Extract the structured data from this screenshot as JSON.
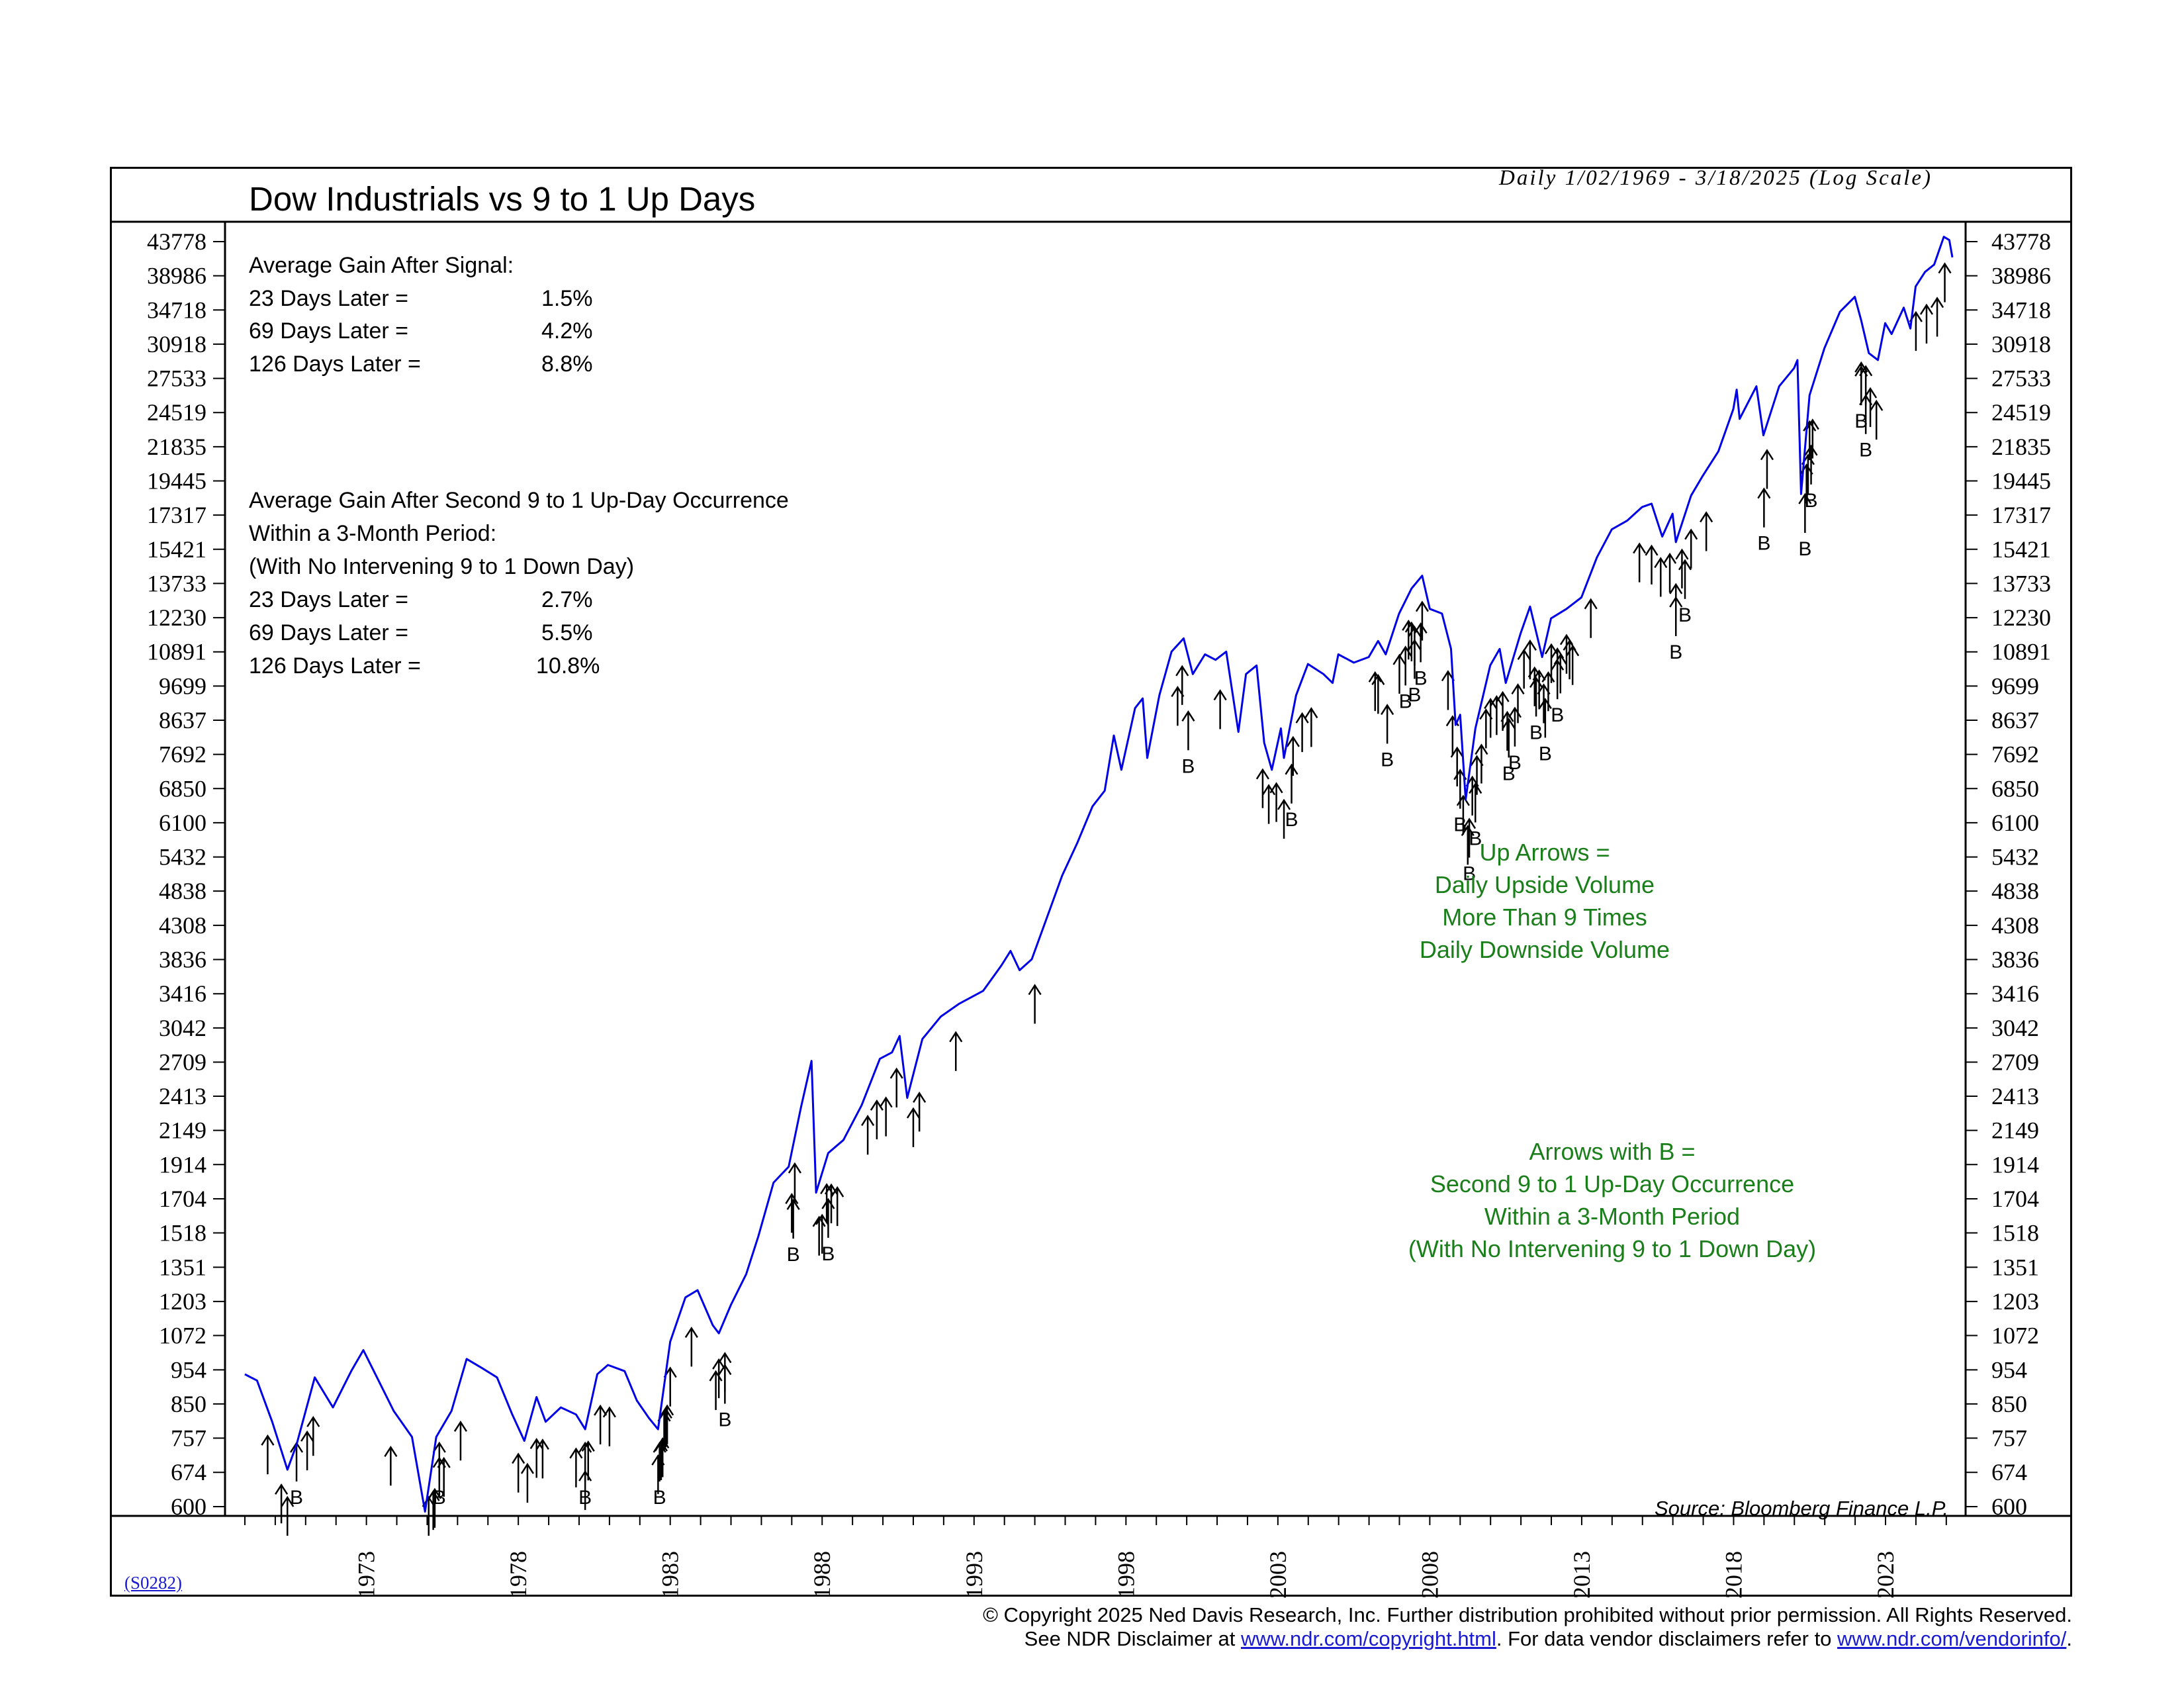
{
  "header": {
    "title": "Dow Industrials vs 9 to 1 Up Days",
    "subtitle": "Daily 1/02/1969 - 3/18/2025 (Log Scale)"
  },
  "annotations": {
    "stats1": [
      "Average Gain After Signal:"
    ],
    "stats1_rows": [
      {
        "label": "23 Days Later =",
        "value": "1.5%"
      },
      {
        "label": "69 Days Later =",
        "value": "4.2%"
      },
      {
        "label": "126 Days Later =",
        "value": "8.8%"
      }
    ],
    "stats2": [
      "Average Gain After Second 9 to 1 Up-Day Occurrence",
      "Within a 3-Month Period:",
      "(With No Intervening 9 to 1 Down Day)"
    ],
    "stats2_rows": [
      {
        "label": "23 Days Later =",
        "value": "2.7%"
      },
      {
        "label": "69 Days Later =",
        "value": "5.5%"
      },
      {
        "label": "126 Days Later =",
        "value": "10.8%"
      }
    ],
    "legend_up": [
      "Up Arrows =",
      "Daily Upside Volume",
      "More Than 9 Times",
      "Daily Downside Volume"
    ],
    "legend_b": [
      "Arrows with B =",
      "Second 9 to 1 Up-Day Occurrence",
      "Within a 3-Month Period",
      "(With No Intervening 9 to 1 Down Day)"
    ],
    "source": "Source: Bloomberg Finance L.P.",
    "b_marker": "B",
    "accent_color": "#1a7f1a",
    "line_color": "#0000e6"
  },
  "code": "(S0282)",
  "footer": {
    "line1": "© Copyright 2025 Ned Davis Research, Inc.  Further distribution prohibited without prior permission.  All Rights Reserved.",
    "line2_pre": "See NDR Disclaimer at ",
    "link1": "www.ndr.com/copyright.html",
    "line2_mid": ". For data vendor disclaimers refer to ",
    "link2": "www.ndr.com/vendorinfo/",
    "line2_post": "."
  },
  "chart_data": {
    "type": "line",
    "scale": "log",
    "title": "Dow Industrials vs 9 to 1 Up Days",
    "subtitle": "Daily 1/02/1969 - 3/18/2025 (Log Scale)",
    "x_ticks": [
      "1973",
      "1978",
      "1983",
      "1988",
      "1993",
      "1998",
      "2003",
      "2008",
      "2013",
      "2018",
      "2023"
    ],
    "x_range": [
      1969.0,
      2025.2
    ],
    "y_ticks": [
      43778,
      38986,
      34718,
      30918,
      27533,
      24519,
      21835,
      19445,
      17317,
      15421,
      13733,
      12230,
      10891,
      9699,
      8637,
      7692,
      6850,
      6100,
      5432,
      4838,
      4308,
      3836,
      3416,
      3042,
      2709,
      2413,
      2149,
      1914,
      1704,
      1518,
      1351,
      1203,
      1072,
      954,
      850,
      757,
      674,
      600
    ],
    "y_range": [
      600,
      43778
    ],
    "series": [
      {
        "name": "Dow Industrials",
        "points": [
          [
            1969.0,
            940
          ],
          [
            1969.4,
            920
          ],
          [
            1969.9,
            800
          ],
          [
            1970.4,
            680
          ],
          [
            1970.7,
            740
          ],
          [
            1971.3,
            930
          ],
          [
            1971.9,
            840
          ],
          [
            1972.5,
            950
          ],
          [
            1972.9,
            1020
          ],
          [
            1973.4,
            920
          ],
          [
            1973.9,
            830
          ],
          [
            1974.5,
            760
          ],
          [
            1974.93,
            590
          ],
          [
            1975.3,
            760
          ],
          [
            1975.8,
            830
          ],
          [
            1976.3,
            990
          ],
          [
            1976.8,
            960
          ],
          [
            1977.3,
            930
          ],
          [
            1977.8,
            820
          ],
          [
            1978.2,
            750
          ],
          [
            1978.6,
            870
          ],
          [
            1978.9,
            800
          ],
          [
            1979.4,
            840
          ],
          [
            1979.9,
            820
          ],
          [
            1980.2,
            780
          ],
          [
            1980.6,
            940
          ],
          [
            1980.95,
            970
          ],
          [
            1981.5,
            950
          ],
          [
            1981.9,
            860
          ],
          [
            1982.3,
            810
          ],
          [
            1982.6,
            780
          ],
          [
            1983.0,
            1050
          ],
          [
            1983.5,
            1220
          ],
          [
            1983.9,
            1250
          ],
          [
            1984.4,
            1110
          ],
          [
            1984.6,
            1080
          ],
          [
            1985.0,
            1190
          ],
          [
            1985.5,
            1320
          ],
          [
            1985.9,
            1500
          ],
          [
            1986.4,
            1800
          ],
          [
            1986.9,
            1900
          ],
          [
            1987.3,
            2320
          ],
          [
            1987.65,
            2720
          ],
          [
            1987.8,
            1740
          ],
          [
            1988.2,
            1990
          ],
          [
            1988.7,
            2080
          ],
          [
            1989.3,
            2340
          ],
          [
            1989.9,
            2740
          ],
          [
            1990.3,
            2800
          ],
          [
            1990.55,
            2960
          ],
          [
            1990.8,
            2400
          ],
          [
            1991.3,
            2930
          ],
          [
            1991.9,
            3160
          ],
          [
            1992.5,
            3300
          ],
          [
            1993.3,
            3450
          ],
          [
            1993.9,
            3760
          ],
          [
            1994.2,
            3950
          ],
          [
            1994.5,
            3700
          ],
          [
            1994.9,
            3840
          ],
          [
            1995.5,
            4550
          ],
          [
            1995.9,
            5100
          ],
          [
            1996.4,
            5700
          ],
          [
            1996.9,
            6450
          ],
          [
            1997.3,
            6800
          ],
          [
            1997.6,
            8200
          ],
          [
            1997.85,
            7300
          ],
          [
            1998.3,
            9000
          ],
          [
            1998.55,
            9300
          ],
          [
            1998.7,
            7600
          ],
          [
            1999.1,
            9400
          ],
          [
            1999.5,
            10900
          ],
          [
            1999.9,
            11400
          ],
          [
            2000.2,
            10100
          ],
          [
            2000.6,
            10800
          ],
          [
            2000.95,
            10600
          ],
          [
            2001.3,
            10900
          ],
          [
            2001.7,
            8300
          ],
          [
            2001.95,
            10100
          ],
          [
            2002.3,
            10400
          ],
          [
            2002.55,
            8000
          ],
          [
            2002.8,
            7300
          ],
          [
            2003.1,
            8400
          ],
          [
            2003.2,
            7600
          ],
          [
            2003.6,
            9400
          ],
          [
            2003.99,
            10450
          ],
          [
            2004.5,
            10100
          ],
          [
            2004.8,
            9800
          ],
          [
            2004.99,
            10800
          ],
          [
            2005.5,
            10500
          ],
          [
            2005.99,
            10700
          ],
          [
            2006.3,
            11300
          ],
          [
            2006.55,
            10800
          ],
          [
            2006.99,
            12400
          ],
          [
            2007.4,
            13500
          ],
          [
            2007.75,
            14100
          ],
          [
            2008.0,
            12600
          ],
          [
            2008.4,
            12400
          ],
          [
            2008.7,
            11000
          ],
          [
            2008.85,
            8500
          ],
          [
            2009.0,
            8800
          ],
          [
            2009.18,
            6600
          ],
          [
            2009.5,
            8400
          ],
          [
            2009.99,
            10400
          ],
          [
            2010.3,
            11000
          ],
          [
            2010.5,
            9800
          ],
          [
            2010.99,
            11600
          ],
          [
            2011.3,
            12700
          ],
          [
            2011.7,
            10700
          ],
          [
            2011.99,
            12200
          ],
          [
            2012.5,
            12600
          ],
          [
            2012.99,
            13100
          ],
          [
            2013.5,
            15000
          ],
          [
            2013.99,
            16500
          ],
          [
            2014.5,
            17000
          ],
          [
            2014.99,
            17800
          ],
          [
            2015.3,
            18000
          ],
          [
            2015.65,
            16100
          ],
          [
            2015.99,
            17400
          ],
          [
            2016.1,
            15800
          ],
          [
            2016.6,
            18500
          ],
          [
            2016.99,
            19800
          ],
          [
            2017.5,
            21500
          ],
          [
            2017.99,
            24800
          ],
          [
            2018.1,
            26500
          ],
          [
            2018.2,
            24000
          ],
          [
            2018.75,
            26800
          ],
          [
            2018.98,
            22700
          ],
          [
            2019.5,
            26800
          ],
          [
            2019.99,
            28500
          ],
          [
            2020.1,
            29300
          ],
          [
            2020.22,
            18600
          ],
          [
            2020.5,
            26000
          ],
          [
            2020.99,
            30500
          ],
          [
            2021.5,
            34500
          ],
          [
            2021.99,
            36300
          ],
          [
            2022.2,
            33500
          ],
          [
            2022.45,
            30000
          ],
          [
            2022.75,
            29300
          ],
          [
            2022.99,
            33200
          ],
          [
            2023.2,
            32000
          ],
          [
            2023.6,
            35000
          ],
          [
            2023.82,
            32600
          ],
          [
            2023.99,
            37600
          ],
          [
            2024.3,
            39500
          ],
          [
            2024.6,
            40500
          ],
          [
            2024.92,
            44500
          ],
          [
            2025.1,
            44000
          ],
          [
            2025.2,
            41500
          ]
        ]
      }
    ],
    "signals": [
      1969.75,
      1970.2,
      1970.4,
      1971.05,
      1971.25,
      1973.8,
      1975.05,
      1975.2,
      1975.25,
      1975.4,
      1975.55,
      1976.1,
      1978.0,
      1978.3,
      1978.6,
      1978.8,
      1979.9,
      1980.2,
      1980.3,
      1980.7,
      1981.0,
      1982.6,
      1982.7,
      1982.75,
      1982.8,
      1982.85,
      1982.9,
      1983.0,
      1983.7,
      1984.5,
      1984.6,
      1984.8,
      1987.0,
      1987.1,
      1987.9,
      1988.0,
      1988.15,
      1988.3,
      1988.5,
      1989.5,
      1989.8,
      1990.1,
      1990.45,
      1991.0,
      1991.2,
      1992.4,
      1995.0,
      1999.7,
      1999.85,
      2001.1,
      2002.5,
      2002.7,
      2002.95,
      2003.2,
      2003.5,
      2003.8,
      2004.1,
      2006.2,
      2006.3,
      2007.0,
      2007.3,
      2007.4,
      2007.5,
      2007.75,
      2008.6,
      2008.75,
      2008.9,
      2009.1,
      2009.25,
      2009.4,
      2009.55,
      2009.7,
      2009.85,
      2010.0,
      2010.2,
      2010.4,
      2010.55,
      2010.9,
      2011.1,
      2011.3,
      2011.45,
      2011.6,
      2011.75,
      2011.9,
      2012.0,
      2012.2,
      2012.3,
      2012.5,
      2012.6,
      2012.7,
      2013.3,
      2014.9,
      2015.3,
      2015.6,
      2015.9,
      2016.1,
      2016.3,
      2016.6,
      2017.1,
      2019.1,
      2020.4,
      2020.45,
      2020.5,
      2020.6,
      2022.2,
      2022.35,
      2022.5,
      2022.7,
      2024.0,
      2024.35,
      2024.7,
      2024.95
    ],
    "b_signals": [
      1970.7,
      1975.4,
      1980.2,
      1982.65,
      1984.8,
      1987.05,
      1988.2,
      2000.05,
      2003.45,
      2006.6,
      2007.2,
      2007.5,
      2007.7,
      2009.0,
      2009.3,
      2009.5,
      2010.6,
      2010.8,
      2011.5,
      2011.8,
      2012.2,
      2016.1,
      2016.4,
      2019.0,
      2020.35,
      2020.55,
      2022.2,
      2022.35
    ]
  }
}
